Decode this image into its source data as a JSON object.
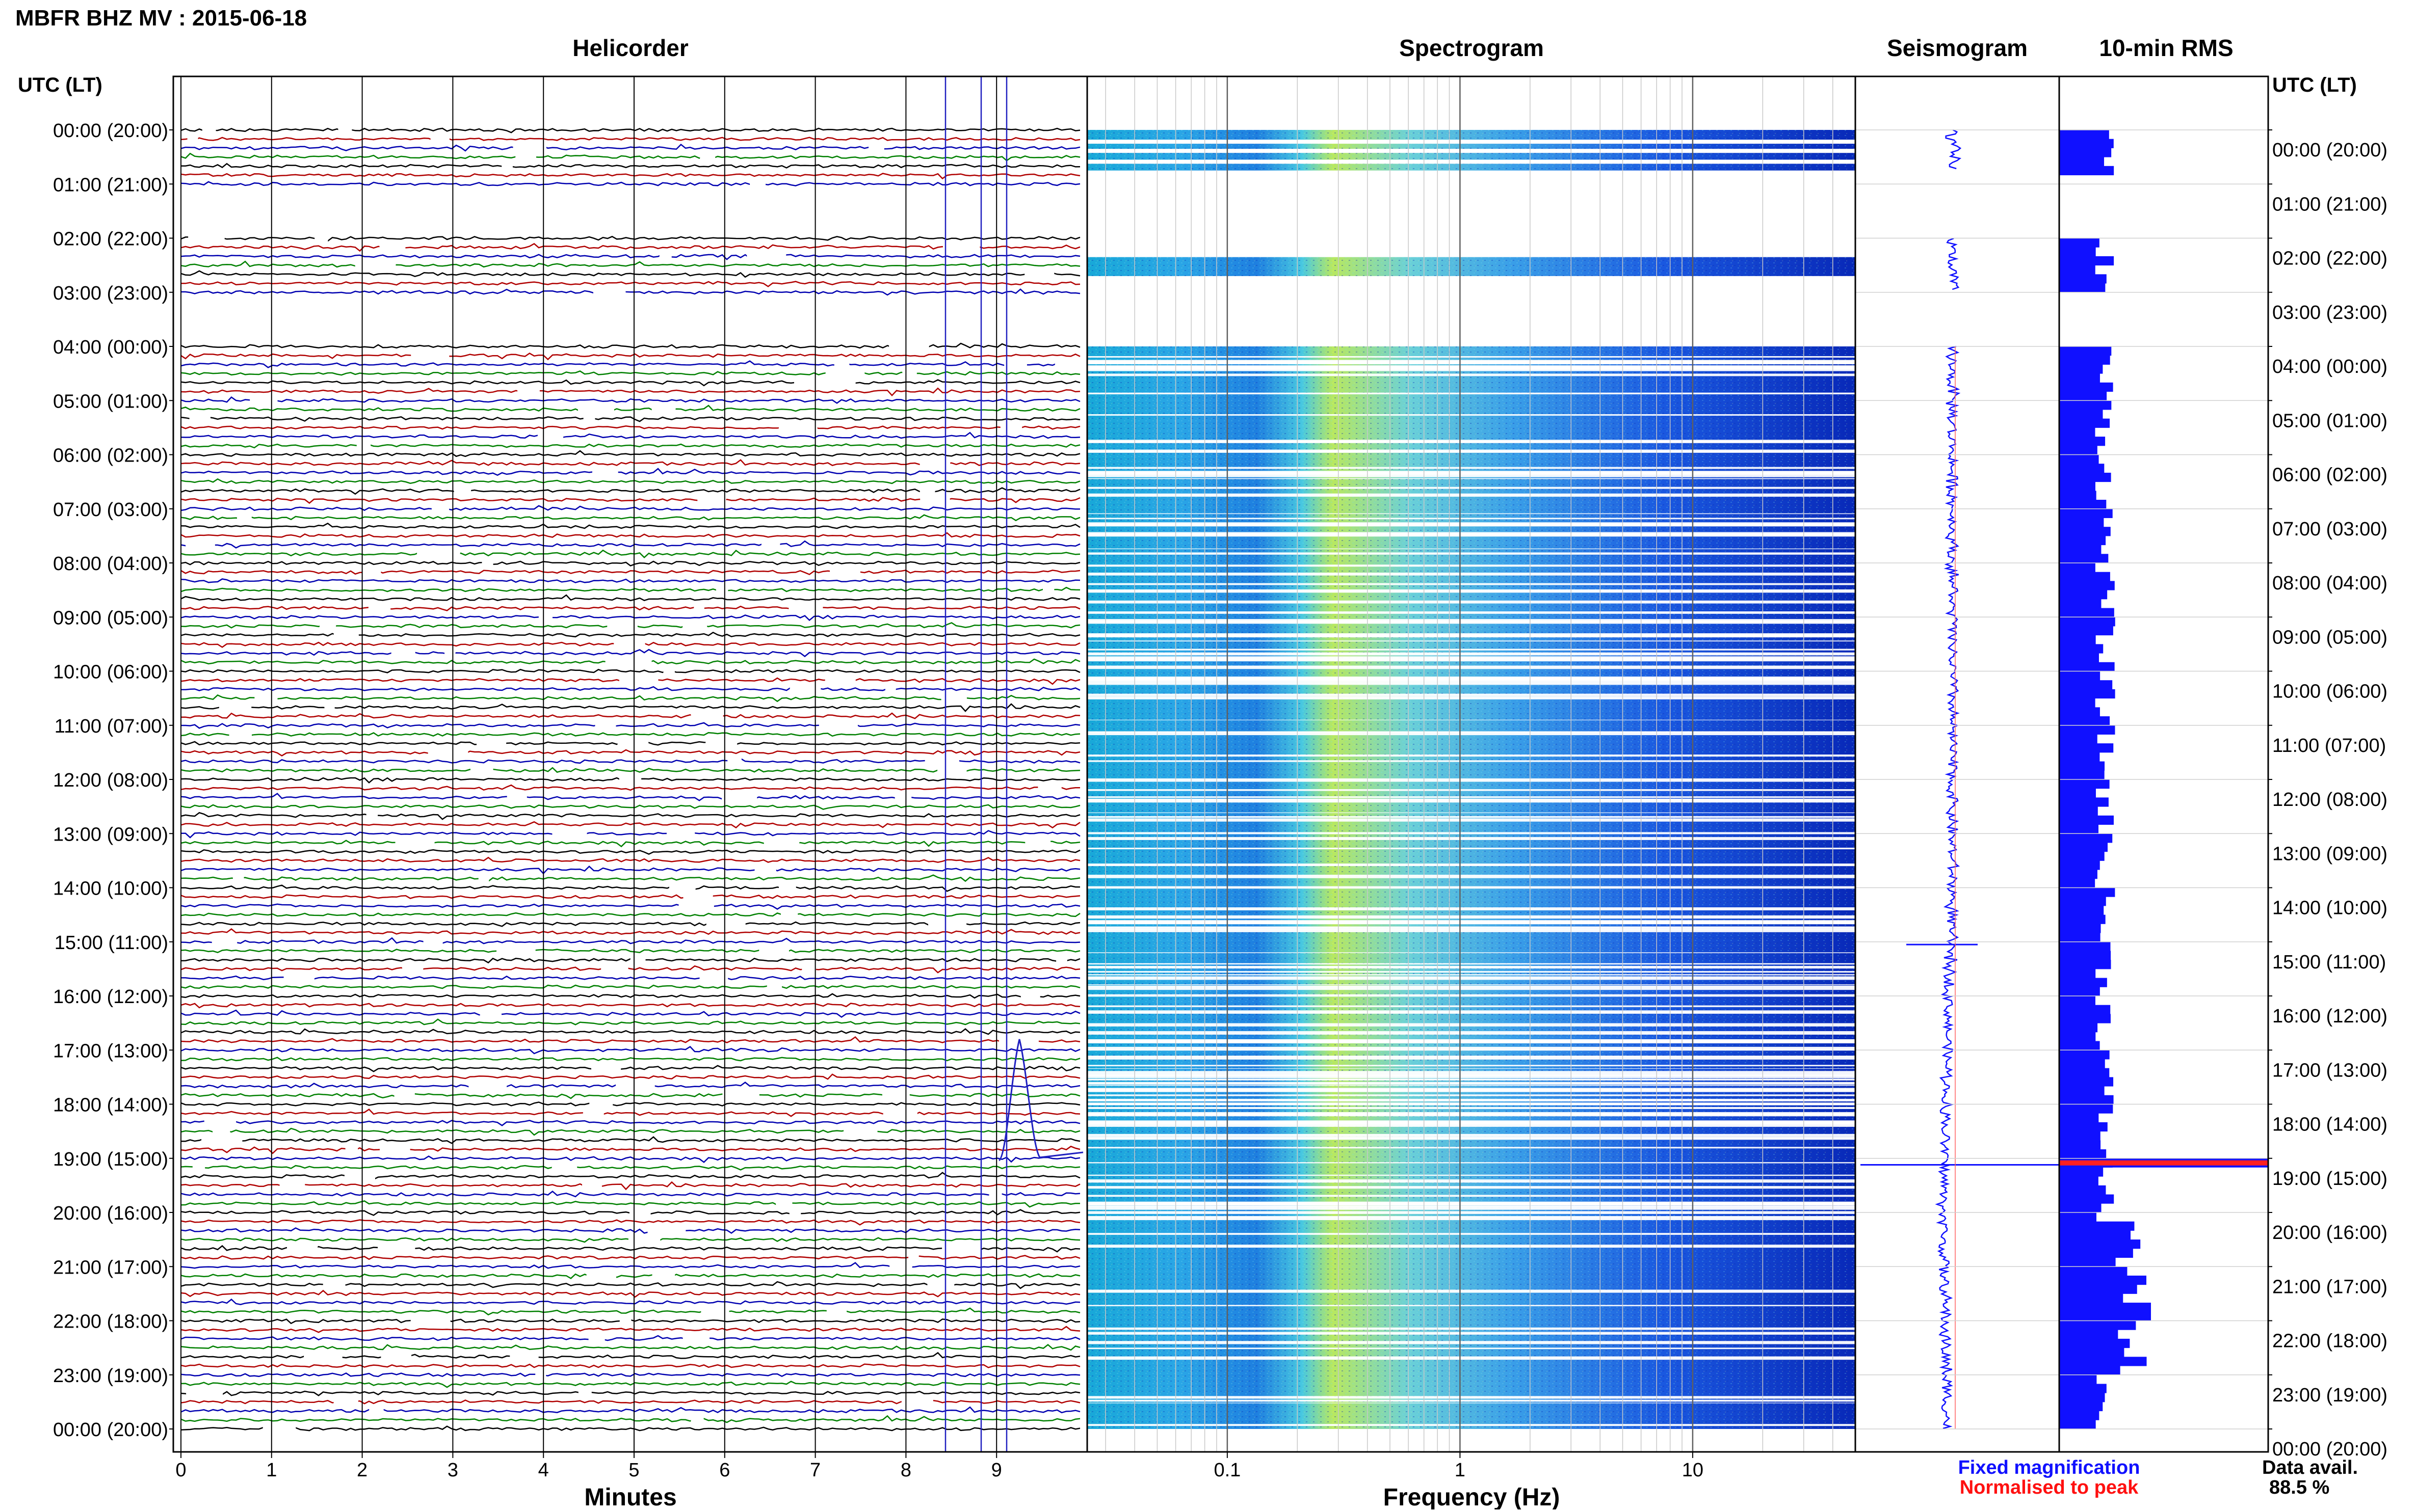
{
  "header": {
    "station_title": "MBFR BHZ MV : 2015-06-18",
    "utc_label_left": "UTC (LT)",
    "utc_label_right": "UTC (LT)"
  },
  "panels": {
    "helicorder": "Helicorder",
    "spectrogram": "Spectrogram",
    "seismogram": "Seismogram",
    "rms": "10-min RMS"
  },
  "time_labels": [
    "00:00 (20:00)",
    "01:00 (21:00)",
    "02:00 (22:00)",
    "03:00 (23:00)",
    "04:00 (00:00)",
    "05:00 (01:00)",
    "06:00 (02:00)",
    "07:00 (03:00)",
    "08:00 (04:00)",
    "09:00 (05:00)",
    "10:00 (06:00)",
    "11:00 (07:00)",
    "12:00 (08:00)",
    "13:00 (09:00)",
    "14:00 (10:00)",
    "15:00 (11:00)",
    "16:00 (12:00)",
    "17:00 (13:00)",
    "18:00 (14:00)",
    "19:00 (15:00)",
    "20:00 (16:00)",
    "21:00 (17:00)",
    "22:00 (18:00)",
    "23:00 (19:00)",
    "00:00 (20:00)"
  ],
  "helicorder_axis": {
    "xlabel": "Minutes",
    "ticks": [
      "0",
      "1",
      "2",
      "3",
      "4",
      "5",
      "6",
      "7",
      "8",
      "9"
    ],
    "trace_colors": [
      "#000000",
      "#b00000",
      "#0000b0",
      "#008000"
    ]
  },
  "spectrogram_axis": {
    "xlabel": "Frequency (Hz)",
    "ticks": [
      "0.1",
      "1",
      "10"
    ]
  },
  "legend": {
    "fixed": "Fixed magnification",
    "fixed_color": "#1010ff",
    "normalised": "Normalised to peak",
    "normalised_color": "#ff1010"
  },
  "availability": {
    "label": "Data avail.",
    "value": "88.5 %"
  },
  "chart_data": {
    "type": "heatmap",
    "date": "2015-06-18",
    "hours_utc": [
      0,
      1,
      2,
      3,
      4,
      5,
      6,
      7,
      8,
      9,
      10,
      11,
      12,
      13,
      14,
      15,
      16,
      17,
      18,
      19,
      20,
      21,
      22,
      23,
      24
    ],
    "helicorder_minutes_range": [
      0,
      10
    ],
    "frequency_range_hz": [
      0.025,
      50
    ],
    "frequency_scale": "log",
    "data_availability_percent": 88.5,
    "rms_peak_time_utc": "19:00",
    "gaps_utc": [
      [
        "01:00",
        "02:00"
      ],
      [
        "03:00",
        "04:00"
      ]
    ]
  }
}
